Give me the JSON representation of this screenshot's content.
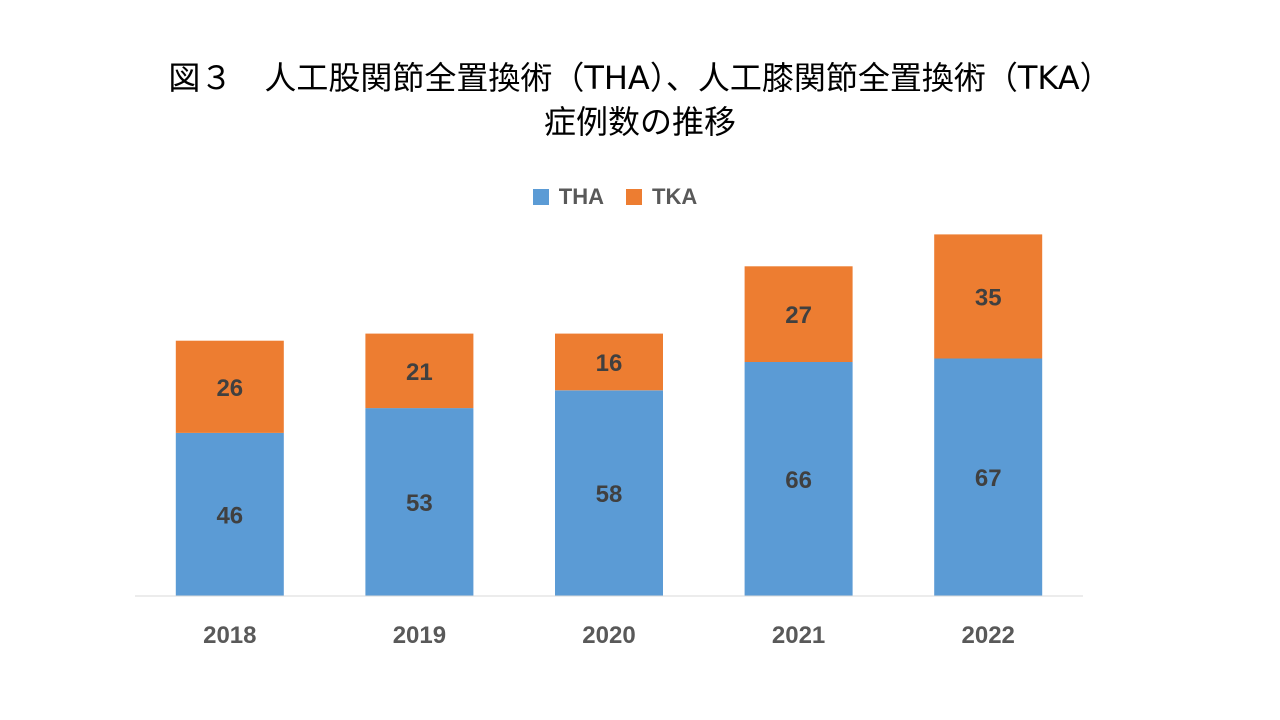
{
  "chart_data": {
    "type": "bar",
    "stacked": true,
    "title_lines": [
      "図３　人工股関節全置換術（THA）、人工膝関節全置換術（TKA）",
      "症例数の推移"
    ],
    "categories": [
      "2018",
      "2019",
      "2020",
      "2021",
      "2022"
    ],
    "series": [
      {
        "name": "THA",
        "values": [
          46,
          53,
          58,
          66,
          67
        ],
        "color": "#5B9BD5"
      },
      {
        "name": "TKA",
        "values": [
          26,
          21,
          16,
          27,
          35
        ],
        "color": "#ED7D31"
      }
    ],
    "xlabel": "",
    "ylabel": "",
    "ylim": [
      0,
      110
    ],
    "y_axis_visible": false,
    "data_labels": true,
    "grid": false,
    "legend_position": "top"
  }
}
